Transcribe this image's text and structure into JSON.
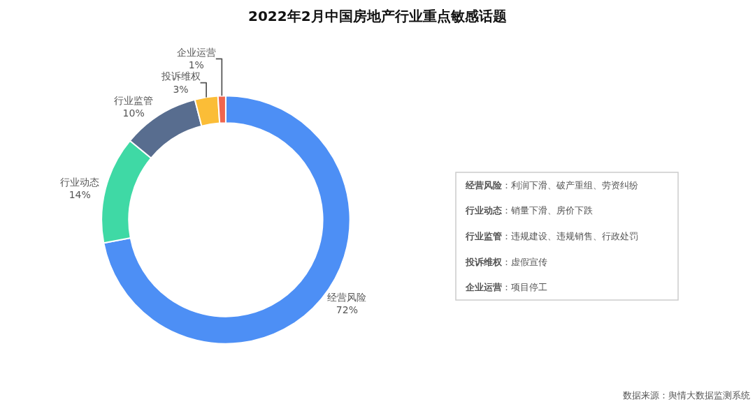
{
  "chart_data": [
    {
      "type": "donut",
      "title": "2022年2月中国房地产行业重点敏感话题",
      "categories": [
        "经营风险",
        "行业动态",
        "行业监管",
        "投诉维权",
        "企业运营"
      ],
      "values": [
        72,
        14,
        10,
        3,
        1
      ],
      "colors": [
        "#4d8ff5",
        "#3fd9a5",
        "#586d8f",
        "#fbbd37",
        "#f0664f"
      ],
      "value_labels": [
        "72%",
        "14%",
        "10%",
        "3%",
        "1%"
      ],
      "legend": false,
      "annotations": [
        "数据来源：舆情大数据监测系统"
      ]
    },
    {
      "type": "other",
      "annotations": [
        "经营风险：利润下滑、破产重组、劳资纠纷",
        "行业动态：销量下滑、房价下跌",
        "行业监管：违规建设、违规销售、行政处罚",
        "投诉维权：虚假宣传",
        "企业运营：项目停工"
      ]
    }
  ]
}
